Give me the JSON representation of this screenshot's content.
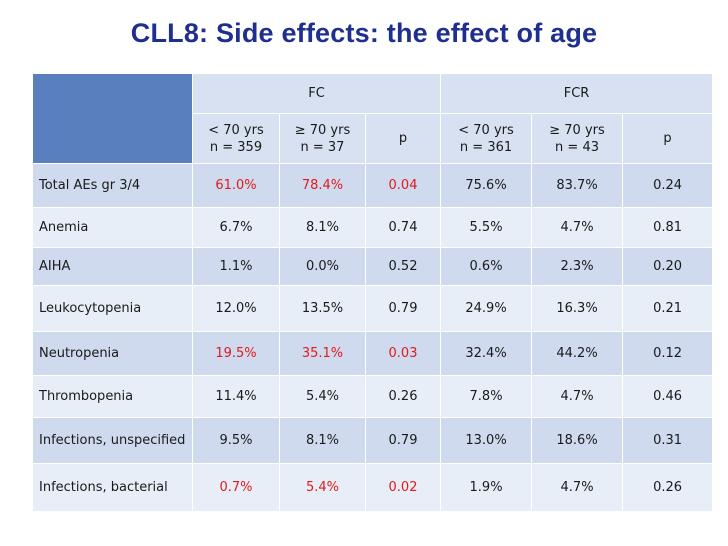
{
  "title": "CLL8: Side effects: the effect of age",
  "table": {
    "groups": [
      "FC",
      "FCR"
    ],
    "subheaders": [
      {
        "line1": "< 70 yrs",
        "line2": "n = 359"
      },
      {
        "line1": "≥ 70 yrs",
        "line2": "n = 37"
      },
      {
        "line1": "p",
        "line2": ""
      },
      {
        "line1": "< 70 yrs",
        "line2": "n = 361"
      },
      {
        "line1": "≥ 70 yrs",
        "line2": "n = 43"
      },
      {
        "line1": "p",
        "line2": ""
      }
    ],
    "rows": [
      {
        "label": "Total AEs gr 3/4",
        "values": [
          "61.0%",
          "78.4%",
          "0.04",
          "75.6%",
          "83.7%",
          "0.24"
        ]
      },
      {
        "label": "Anemia",
        "values": [
          "6.7%",
          "8.1%",
          "0.74",
          "5.5%",
          "4.7%",
          "0.81"
        ]
      },
      {
        "label": "AIHA",
        "values": [
          "1.1%",
          "0.0%",
          "0.52",
          "0.6%",
          "2.3%",
          "0.20"
        ]
      },
      {
        "label": "Leukocytopenia",
        "values": [
          "12.0%",
          "13.5%",
          "0.79",
          "24.9%",
          "16.3%",
          "0.21"
        ]
      },
      {
        "label": "Neutropenia",
        "values": [
          "19.5%",
          "35.1%",
          "0.03",
          "32.4%",
          "44.2%",
          "0.12"
        ]
      },
      {
        "label": "Thrombopenia",
        "values": [
          "11.4%",
          "5.4%",
          "0.26",
          "7.8%",
          "4.7%",
          "0.46"
        ]
      },
      {
        "label": "Infections, unspecified",
        "values": [
          "9.5%",
          "8.1%",
          "0.79",
          "13.0%",
          "18.6%",
          "0.31"
        ]
      },
      {
        "label": "Infections, bacterial",
        "values": [
          "0.7%",
          "5.4%",
          "0.02",
          "1.9%",
          "4.7%",
          "0.26"
        ]
      }
    ],
    "highlight_color": "#e01b1b",
    "header_color": "#5a7fbf",
    "band_color": "#cfdaee"
  }
}
